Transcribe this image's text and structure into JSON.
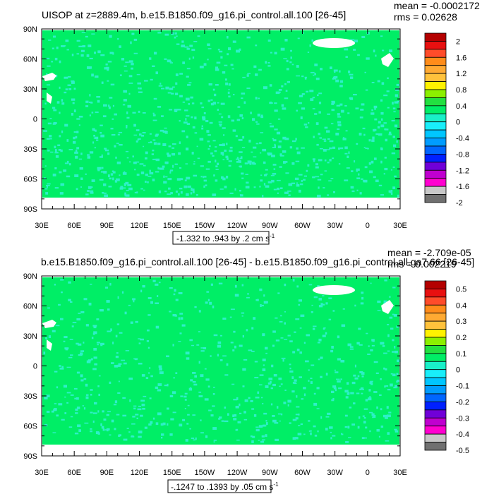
{
  "panels": [
    {
      "title": "UISOP at z=2889.4m, b.e15.B1850.f09_g16.pi_control.all.100 [26-45]",
      "stats": {
        "mean": "mean = -0.0002172",
        "rms": "rms = 0.02628"
      },
      "caption_text": "-1.332 to .943 by .2 cm s",
      "caption_exp": "-1",
      "colorbar_labels": [
        "2",
        "1.6",
        "1.2",
        "0.8",
        "0.4",
        "0",
        "-0.4",
        "-0.8",
        "-1.2",
        "-1.6",
        "-2"
      ],
      "dominant_color": "#00ee66",
      "fleck_color": "#2ef0c8",
      "fleck_density": 0.34,
      "ice_edge_color": "#00ee66"
    },
    {
      "title": "b.e15.B1850.f09_g16.pi_control.all.100 [26-45] - b.e15.B1850.f09_g16.pi_control.all.ga7.66 [26-45]",
      "stats": {
        "mean": "mean = -2.709e-05",
        "rms": "rms = 0.002219"
      },
      "caption_text": "-.1247 to .1393 by .05 cm s",
      "caption_exp": "-1",
      "colorbar_labels": [
        "0.5",
        "0.4",
        "0.3",
        "0.2",
        "0.1",
        "0",
        "-0.1",
        "-0.2",
        "-0.3",
        "-0.4",
        "-0.5"
      ],
      "dominant_color": "#00ee66",
      "fleck_color": "#2ef0c8",
      "fleck_density": 0.26,
      "ice_edge_color": "#00ee66"
    }
  ],
  "axes": {
    "lat_labels": [
      "90N",
      "60N",
      "30N",
      "0",
      "30S",
      "60S",
      "90S"
    ],
    "lon_labels": [
      "30E",
      "60E",
      "90E",
      "120E",
      "150E",
      "150W",
      "120W",
      "90W",
      "60W",
      "30W",
      "0",
      "30E"
    ]
  },
  "colorbar_colors": [
    "#b40000",
    "#e81010",
    "#ff4c2a",
    "#ff8c1a",
    "#ffaa33",
    "#ffc23c",
    "#fff200",
    "#8cf000",
    "#22e040",
    "#00ee66",
    "#19f0c8",
    "#19eefa",
    "#00c6ff",
    "#009cff",
    "#0066ff",
    "#0020ff",
    "#7000d8",
    "#c000d0",
    "#ff00d0",
    "#c8c8c8",
    "#707070"
  ]
}
